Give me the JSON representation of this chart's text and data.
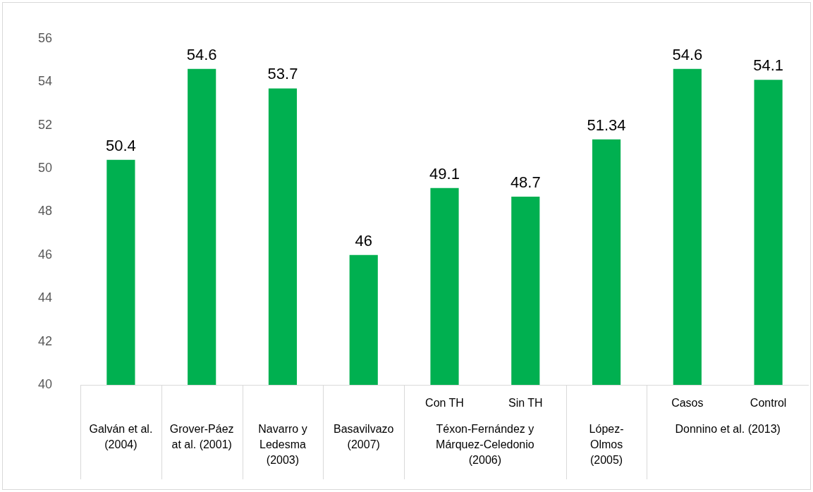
{
  "chart_data": {
    "type": "bar",
    "categories": [
      "Galván et al. (2004)",
      "Grover-Páez at al. (2001)",
      "Navarro y Ledesma (2003)",
      "Basavilvazo (2007)",
      "Con TH",
      "Sin TH",
      "López-Olmos (2005)",
      "Casos",
      "Control"
    ],
    "values": [
      50.4,
      54.6,
      53.7,
      46,
      49.1,
      48.7,
      51.34,
      54.6,
      54.1
    ],
    "color": "#00b050",
    "ylim": [
      40,
      56
    ],
    "yticks": [
      40,
      42,
      44,
      46,
      48,
      50,
      52,
      54,
      56
    ],
    "annotations": [
      "Téxon-Fernández y Márquez-Celedonio (2006)",
      "Donnino et al. (2013)"
    ],
    "data_labels": true,
    "grid": false,
    "legend": false
  }
}
